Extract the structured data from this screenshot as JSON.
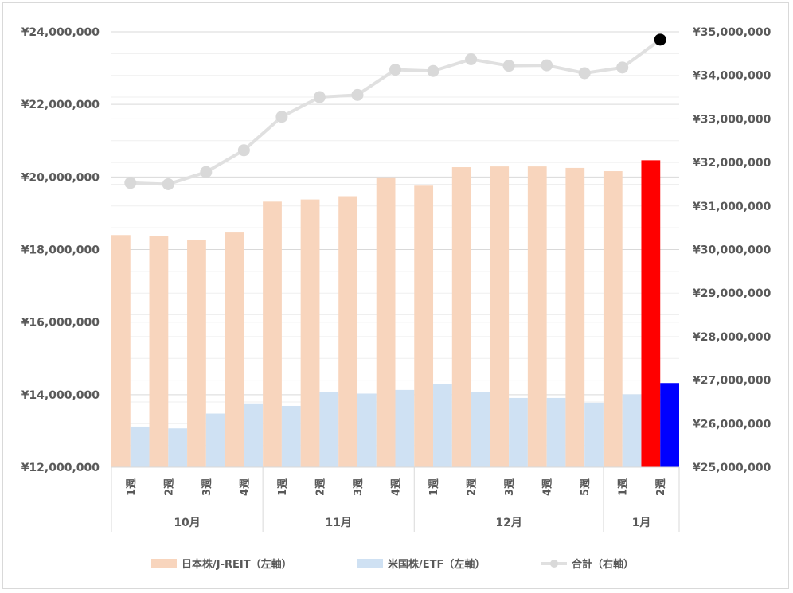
{
  "chart_data": {
    "type": "bar",
    "left_axis": {
      "min": 12000000,
      "max": 24000000,
      "major_step": 2000000,
      "tick_labels": [
        "¥12,000,000",
        "¥14,000,000",
        "¥16,000,000",
        "¥18,000,000",
        "¥20,000,000",
        "¥22,000,000",
        "¥24,000,000"
      ]
    },
    "right_axis": {
      "min": 25000000,
      "max": 35000000,
      "major_step": 1000000,
      "tick_labels": [
        "¥25,000,000",
        "¥26,000,000",
        "¥27,000,000",
        "¥28,000,000",
        "¥29,000,000",
        "¥30,000,000",
        "¥31,000,000",
        "¥32,000,000",
        "¥33,000,000",
        "¥34,000,000",
        "¥35,000,000"
      ]
    },
    "grid": true,
    "legend_position": "bottom",
    "categories": [
      {
        "week": "1週",
        "month": "10月"
      },
      {
        "week": "2週",
        "month": "10月"
      },
      {
        "week": "3週",
        "month": "10月"
      },
      {
        "week": "4週",
        "month": "10月"
      },
      {
        "week": "1週",
        "month": "11月"
      },
      {
        "week": "2週",
        "month": "11月"
      },
      {
        "week": "3週",
        "month": "11月"
      },
      {
        "week": "4週",
        "month": "11月"
      },
      {
        "week": "1週",
        "month": "12月"
      },
      {
        "week": "2週",
        "month": "12月"
      },
      {
        "week": "3週",
        "month": "12月"
      },
      {
        "week": "4週",
        "month": "12月"
      },
      {
        "week": "5週",
        "month": "12月"
      },
      {
        "week": "1週",
        "month": "1月"
      },
      {
        "week": "2週",
        "month": "1月"
      }
    ],
    "months": [
      {
        "label": "10月",
        "count": 4
      },
      {
        "label": "11月",
        "count": 4
      },
      {
        "label": "12月",
        "count": 5
      },
      {
        "label": "1月",
        "count": 2
      }
    ],
    "series": [
      {
        "name": "日本株/J-REIT（左軸）",
        "type": "bar",
        "axis": "left",
        "color": "#f8d5bd",
        "highlight_color": "#ff0000",
        "values": [
          18400000,
          18370000,
          18270000,
          18470000,
          19320000,
          19380000,
          19470000,
          19990000,
          19760000,
          20270000,
          20290000,
          20290000,
          20250000,
          20160000,
          20460000
        ]
      },
      {
        "name": "米国株/ETF（左軸）",
        "type": "bar",
        "axis": "left",
        "color": "#cfe1f3",
        "highlight_color": "#0000ff",
        "values": [
          13120000,
          13070000,
          13480000,
          13760000,
          13690000,
          14080000,
          14030000,
          14130000,
          14300000,
          14080000,
          13910000,
          13910000,
          13780000,
          14010000,
          14320000
        ]
      },
      {
        "name": "合計（右軸）",
        "type": "line",
        "axis": "right",
        "color": "#e0e0e0",
        "marker_color": "#d9d9d9",
        "highlight_color": "#000000",
        "values": [
          31530000,
          31500000,
          31780000,
          32280000,
          33050000,
          33500000,
          33550000,
          34130000,
          34100000,
          34370000,
          34220000,
          34230000,
          34050000,
          34180000,
          34820000
        ]
      }
    ]
  }
}
